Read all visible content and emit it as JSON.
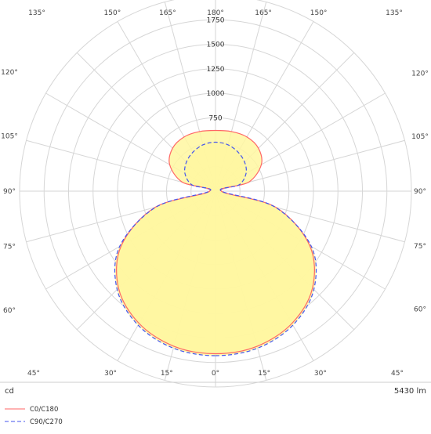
{
  "chart_data": {
    "type": "polar",
    "unit_label": "cd",
    "flux_label": "5430 lm",
    "radial_ticks": [
      "750",
      "1000",
      "1250",
      "1500",
      "1750"
    ],
    "radial_tick_values": [
      750,
      1000,
      1250,
      1500,
      1750
    ],
    "rmax": 2000,
    "angle_labels": [
      {
        "text": "0°",
        "deg": 0
      },
      {
        "text": "15°",
        "deg": 15
      },
      {
        "text": "15°",
        "deg": -15
      },
      {
        "text": "30°",
        "deg": 30
      },
      {
        "text": "30°",
        "deg": -30
      },
      {
        "text": "45°",
        "deg": 45
      },
      {
        "text": "45°",
        "deg": -45
      },
      {
        "text": "60°",
        "deg": 60
      },
      {
        "text": "60°",
        "deg": -60
      },
      {
        "text": "75°",
        "deg": 75
      },
      {
        "text": "75°",
        "deg": -75
      },
      {
        "text": "90°",
        "deg": 90
      },
      {
        "text": "90°",
        "deg": -90
      },
      {
        "text": "105°",
        "deg": 105
      },
      {
        "text": "105°",
        "deg": -105
      },
      {
        "text": "120°",
        "deg": 120
      },
      {
        "text": "120°",
        "deg": -120
      },
      {
        "text": "135°",
        "deg": 135
      },
      {
        "text": "135°",
        "deg": -135
      },
      {
        "text": "150°",
        "deg": 150
      },
      {
        "text": "150°",
        "deg": -150
      },
      {
        "text": "165°",
        "deg": 165
      },
      {
        "text": "165°",
        "deg": -165
      },
      {
        "text": "180°",
        "deg": 180
      }
    ],
    "series": [
      {
        "name": "C0/C180",
        "color": "#ff6666",
        "dash": "solid",
        "angles": [
          0,
          15,
          30,
          45,
          60,
          75,
          90,
          105,
          120,
          135,
          150,
          165,
          180
        ],
        "values": [
          1660,
          1640,
          1560,
          1400,
          1110,
          640,
          60,
          350,
          540,
          620,
          640,
          630,
          620
        ]
      },
      {
        "name": "C90/C270",
        "color": "#4455ee",
        "dash": "dashed",
        "angles": [
          0,
          15,
          30,
          45,
          60,
          75,
          90,
          105,
          120,
          135,
          150,
          165,
          180
        ],
        "values": [
          1680,
          1660,
          1580,
          1420,
          1130,
          630,
          60,
          250,
          360,
          420,
          460,
          490,
          500
        ]
      }
    ],
    "fill_color": "#fff7a0"
  }
}
